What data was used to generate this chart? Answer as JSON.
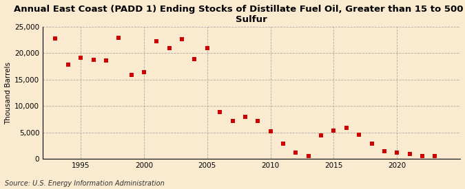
{
  "title": "Annual East Coast (PADD 1) Ending Stocks of Distillate Fuel Oil, Greater than 15 to 500 ppm\nSulfur",
  "ylabel": "Thousand Barrels",
  "source": "Source: U.S. Energy Information Administration",
  "background_color": "#faebd0",
  "plot_bg_color": "#faebd0",
  "marker_color": "#cc0000",
  "years": [
    1993,
    1994,
    1995,
    1996,
    1997,
    1998,
    1999,
    2000,
    2001,
    2002,
    2003,
    2004,
    2005,
    2006,
    2007,
    2008,
    2009,
    2010,
    2011,
    2012,
    2013,
    2014,
    2015,
    2016,
    2017,
    2018,
    2019,
    2020,
    2021,
    2022,
    2023
  ],
  "values": [
    22800,
    17900,
    19200,
    18700,
    18600,
    22900,
    15900,
    16400,
    22200,
    20900,
    22600,
    18900,
    21000,
    8900,
    7200,
    8000,
    7200,
    5200,
    2900,
    1200,
    600,
    4500,
    5300,
    5900,
    4600,
    2900,
    1400,
    1200,
    900,
    600,
    600
  ],
  "xlim": [
    1992,
    2025
  ],
  "ylim": [
    0,
    25000
  ],
  "yticks": [
    0,
    5000,
    10000,
    15000,
    20000,
    25000
  ],
  "xticks": [
    1995,
    2000,
    2005,
    2010,
    2015,
    2020
  ],
  "grid_color": "#999999",
  "title_fontsize": 9.5,
  "label_fontsize": 7.5,
  "tick_fontsize": 7.5,
  "source_fontsize": 7
}
